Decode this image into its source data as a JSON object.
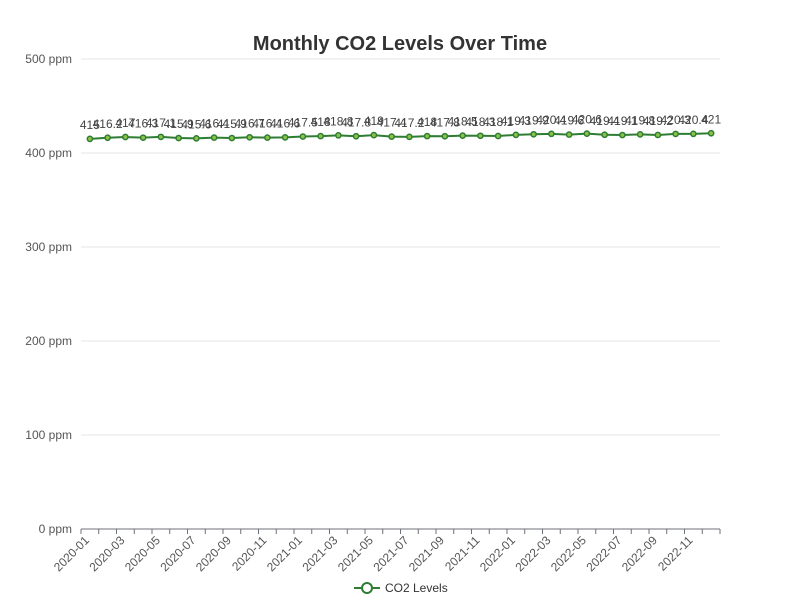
{
  "chart_data": {
    "type": "line",
    "title": "Monthly CO2 Levels Over Time",
    "xlabel": "",
    "ylabel": "",
    "y_unit_suffix": " ppm",
    "ylim": [
      0,
      500
    ],
    "y_ticks": [
      0,
      100,
      200,
      300,
      400,
      500
    ],
    "grid": true,
    "legend_position": "bottom",
    "x": [
      "2020-01",
      "2020-02",
      "2020-03",
      "2020-04",
      "2020-05",
      "2020-06",
      "2020-07",
      "2020-08",
      "2020-09",
      "2020-10",
      "2020-11",
      "2020-12",
      "2021-01",
      "2021-02",
      "2021-03",
      "2021-04",
      "2021-05",
      "2021-06",
      "2021-07",
      "2021-08",
      "2021-09",
      "2021-10",
      "2021-11",
      "2021-12",
      "2022-01",
      "2022-02",
      "2022-03",
      "2022-04",
      "2022-05",
      "2022-06",
      "2022-07",
      "2022-08",
      "2022-09",
      "2022-10",
      "2022-11",
      "2022-12"
    ],
    "x_tick_labels_shown": [
      "2020-01",
      "2020-03",
      "2020-05",
      "2020-07",
      "2020-09",
      "2020-11",
      "2021-01",
      "2021-03",
      "2021-05",
      "2021-07",
      "2021-09",
      "2021-11",
      "2022-01",
      "2022-03",
      "2022-05",
      "2022-07",
      "2022-09",
      "2022-11"
    ],
    "series": [
      {
        "name": "CO2 Levels",
        "color": "#2e7d32",
        "marker_fill": "#8bc34a",
        "values": [
          415,
          416.2,
          417,
          416.3,
          417.1,
          415.9,
          415.6,
          416.4,
          415.9,
          416.7,
          416.4,
          416.6,
          417.5,
          418,
          418.8,
          417.8,
          419,
          417.4,
          417.2,
          418,
          417.8,
          418.5,
          418.3,
          418.1,
          419.3,
          419.9,
          420.4,
          419.6,
          420.6,
          419.4,
          419.1,
          419.8,
          419.2,
          420.3,
          420.4,
          421
        ]
      }
    ]
  }
}
